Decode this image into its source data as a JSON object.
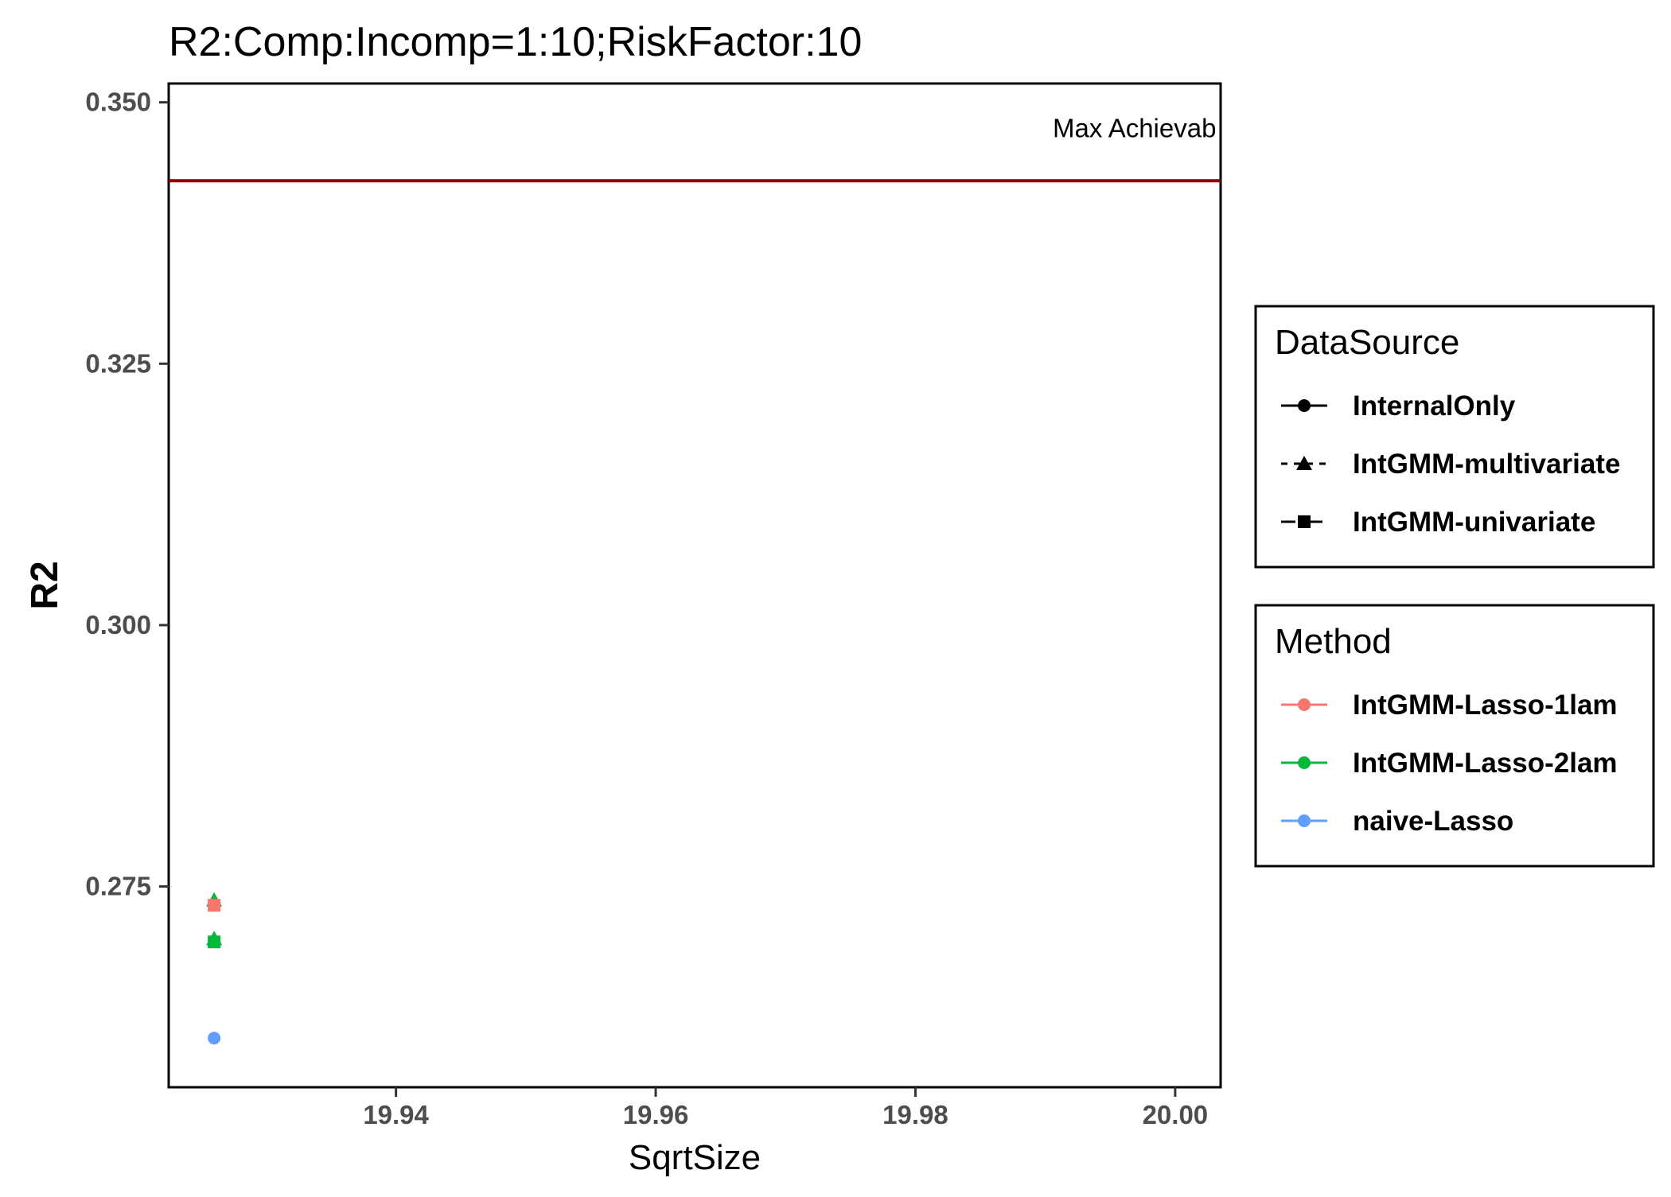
{
  "chart_data": {
    "type": "scatter",
    "title": "R2:Comp:Incomp=1:10;RiskFactor:10",
    "xlabel": "SqrtSize",
    "ylabel": "R2",
    "xlim": [
      19.9225,
      20.0035
    ],
    "ylim": [
      0.2558,
      0.3518
    ],
    "x_ticks": [
      19.94,
      19.96,
      19.98,
      20.0
    ],
    "x_tick_labels": [
      "19.94",
      "19.96",
      "19.98",
      "20.00"
    ],
    "y_ticks": [
      0.275,
      0.3,
      0.325,
      0.35
    ],
    "y_tick_labels": [
      "0.275",
      "0.300",
      "0.325",
      "0.350"
    ],
    "grid": false,
    "reference_line": {
      "y": 0.3425,
      "label": "Max Achievab",
      "color": "#8b0000"
    },
    "points": [
      {
        "x": 19.926,
        "y": 0.2605,
        "method": "naive-Lasso",
        "source": "InternalOnly"
      },
      {
        "x": 19.926,
        "y": 0.27,
        "method": "IntGMM-Lasso-1lam",
        "source": "IntGMM-multivariate"
      },
      {
        "x": 19.926,
        "y": 0.2697,
        "method": "IntGMM-Lasso-2lam",
        "source": "IntGMM-univariate"
      },
      {
        "x": 19.926,
        "y": 0.27,
        "method": "IntGMM-Lasso-2lam",
        "source": "IntGMM-multivariate"
      },
      {
        "x": 19.926,
        "y": 0.2737,
        "method": "IntGMM-Lasso-2lam",
        "source": "IntGMM-multivariate"
      },
      {
        "x": 19.926,
        "y": 0.2732,
        "method": "IntGMM-Lasso-1lam",
        "source": "IntGMM-univariate"
      }
    ],
    "legends": [
      {
        "title": "DataSource",
        "entries": [
          {
            "label": "InternalOnly",
            "shape": "circle",
            "line": "solid"
          },
          {
            "label": "IntGMM-multivariate",
            "shape": "triangle",
            "line": "dashed"
          },
          {
            "label": "IntGMM-univariate",
            "shape": "square",
            "line": "longdash"
          }
        ]
      },
      {
        "title": "Method",
        "entries": [
          {
            "label": "IntGMM-Lasso-1lam",
            "color": "#f8766d"
          },
          {
            "label": "IntGMM-Lasso-2lam",
            "color": "#00ba38"
          },
          {
            "label": "naive-Lasso",
            "color": "#619cff"
          }
        ]
      }
    ]
  }
}
